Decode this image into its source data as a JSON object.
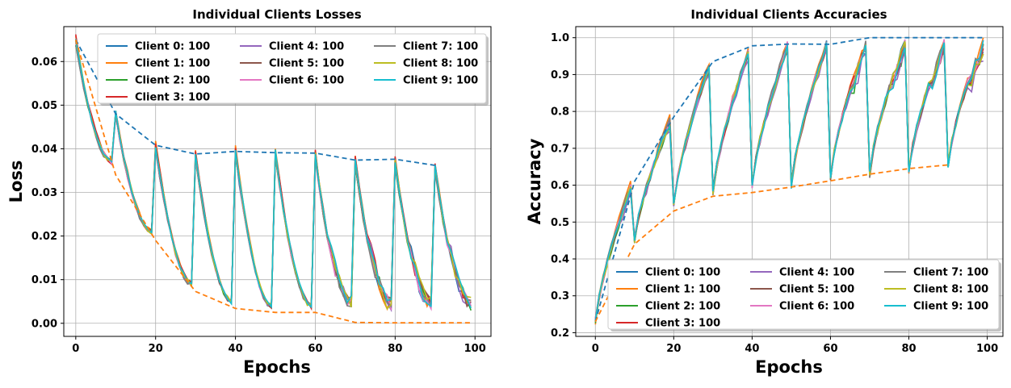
{
  "colors": {
    "series": [
      "#1f77b4",
      "#ff7f0e",
      "#2ca02c",
      "#d62728",
      "#9467bd",
      "#8c564b",
      "#e377c2",
      "#7f7f7f",
      "#bcbd22",
      "#17becf"
    ],
    "upper_envelope": "#1f77b4",
    "lower_envelope": "#ff7f0e",
    "grid": "#b0b0b0"
  },
  "chart_data": [
    {
      "type": "line",
      "title": "Individual Clients Losses",
      "xlabel": "Epochs",
      "ylabel": "Loss",
      "xlim": [
        -3,
        104
      ],
      "ylim": [
        -0.003,
        0.068
      ],
      "xticks": [
        0,
        20,
        40,
        60,
        80,
        100
      ],
      "xtick_labels": [
        "0",
        "20",
        "40",
        "60",
        "80",
        "100"
      ],
      "yticks": [
        0.0,
        0.01,
        0.02,
        0.03,
        0.04,
        0.05,
        0.06
      ],
      "ytick_labels": [
        "0.00",
        "0.01",
        "0.02",
        "0.03",
        "0.04",
        "0.05",
        "0.06"
      ],
      "grid": true,
      "legend_position": "top-right",
      "legend_columns": 3,
      "round_peaks": [
        0.065,
        0.048,
        0.0405,
        0.0385,
        0.0395,
        0.039,
        0.0385,
        0.0372,
        0.0372,
        0.036
      ],
      "round_ends": [
        0.037,
        0.021,
        0.009,
        0.005,
        0.004,
        0.004,
        0.003,
        0.003,
        0.003,
        0.003
      ],
      "series": [
        {
          "name": "Client 0: 100"
        },
        {
          "name": "Client 1: 100"
        },
        {
          "name": "Client 2: 100"
        },
        {
          "name": "Client 3: 100"
        },
        {
          "name": "Client 4: 100"
        },
        {
          "name": "Client 5: 100"
        },
        {
          "name": "Client 6: 100"
        },
        {
          "name": "Client 7: 100"
        },
        {
          "name": "Client 8: 100"
        },
        {
          "name": "Client 9: 100"
        }
      ],
      "upper_envelope": {
        "x": [
          0,
          10,
          20,
          30,
          40,
          50,
          60,
          70,
          80,
          90
        ],
        "y": [
          0.065,
          0.048,
          0.0408,
          0.0388,
          0.0394,
          0.0391,
          0.039,
          0.0374,
          0.0376,
          0.0362
        ]
      },
      "lower_envelope": {
        "x": [
          0,
          10,
          20,
          30,
          40,
          50,
          60,
          70,
          80,
          90,
          99
        ],
        "y": [
          0.065,
          0.034,
          0.019,
          0.0073,
          0.0034,
          0.0025,
          0.0025,
          0.0002,
          0.0001,
          0.0001,
          0.0001
        ]
      }
    },
    {
      "type": "line",
      "title": "Individual Clients Accuracies",
      "xlabel": "Epochs",
      "ylabel": "Accuracy",
      "xlim": [
        -5,
        104
      ],
      "ylim": [
        0.19,
        1.03
      ],
      "xticks": [
        0,
        20,
        40,
        60,
        80,
        100
      ],
      "xtick_labels": [
        "0",
        "20",
        "40",
        "60",
        "80",
        "100"
      ],
      "yticks": [
        0.2,
        0.3,
        0.4,
        0.5,
        0.6,
        0.7,
        0.8,
        0.9,
        1.0
      ],
      "ytick_labels": [
        "0.2",
        "0.3",
        "0.4",
        "0.5",
        "0.6",
        "0.7",
        "0.8",
        "0.9",
        "1.0"
      ],
      "grid": true,
      "legend_position": "bottom-right",
      "legend_columns": 3,
      "round_starts": [
        0.23,
        0.45,
        0.55,
        0.58,
        0.6,
        0.6,
        0.62,
        0.63,
        0.64,
        0.655
      ],
      "round_peaks": [
        0.59,
        0.77,
        0.92,
        0.96,
        0.975,
        0.98,
        0.995,
        0.995,
        0.995,
        0.995
      ],
      "series": [
        {
          "name": "Client 0: 100"
        },
        {
          "name": "Client 1: 100"
        },
        {
          "name": "Client 2: 100"
        },
        {
          "name": "Client 3: 100"
        },
        {
          "name": "Client 4: 100"
        },
        {
          "name": "Client 5: 100"
        },
        {
          "name": "Client 6: 100"
        },
        {
          "name": "Client 7: 100"
        },
        {
          "name": "Client 8: 100"
        },
        {
          "name": "Client 9: 100"
        }
      ],
      "upper_envelope": {
        "x": [
          0,
          10,
          20,
          30,
          40,
          50,
          60,
          70,
          80,
          90,
          99
        ],
        "y": [
          0.23,
          0.61,
          0.785,
          0.935,
          0.978,
          0.983,
          0.982,
          1.0,
          1.0,
          1.0,
          1.0
        ]
      },
      "lower_envelope": {
        "x": [
          0,
          10,
          20,
          30,
          40,
          50,
          60,
          70,
          80,
          90
        ],
        "y": [
          0.23,
          0.44,
          0.53,
          0.57,
          0.58,
          0.595,
          0.612,
          0.63,
          0.645,
          0.655
        ]
      }
    }
  ]
}
